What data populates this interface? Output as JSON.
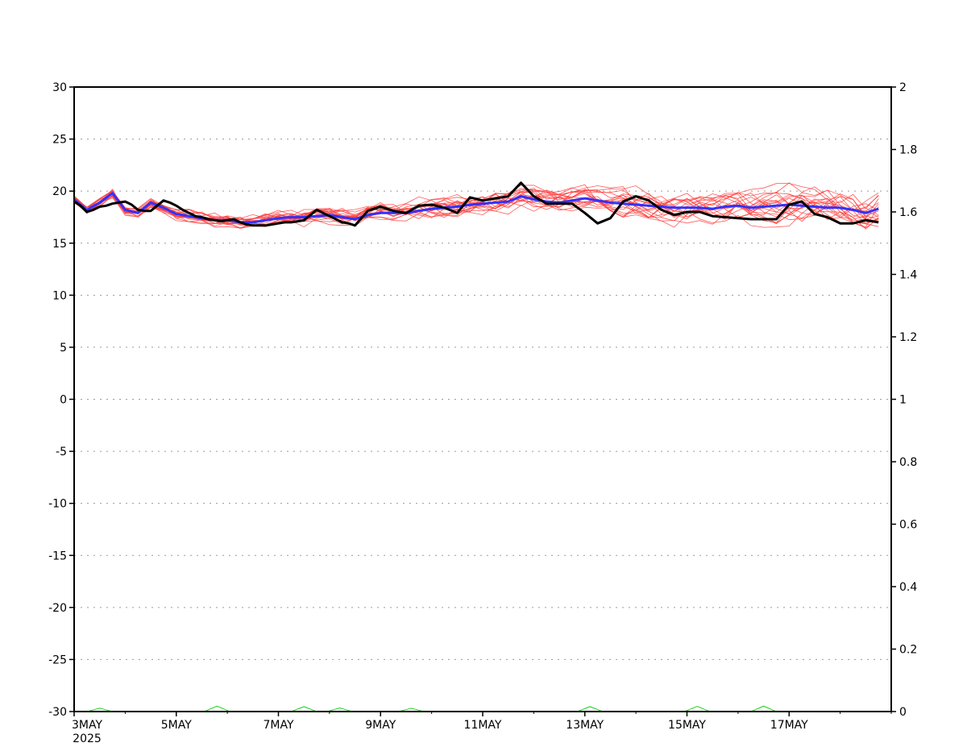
{
  "chart_data": {
    "type": "line",
    "title": "",
    "xlabel": "",
    "ylabel": "",
    "x_start": "2025-05-03T00:00",
    "x_end": "2025-05-19T00:00",
    "x_tick_labels": [
      "3MAY",
      "5MAY",
      "7MAY",
      "9MAY",
      "11MAY",
      "13MAY",
      "15MAY",
      "17MAY"
    ],
    "x_tick_dates": [
      "2025-05-03",
      "2025-05-05",
      "2025-05-07",
      "2025-05-09",
      "2025-05-11",
      "2025-05-13",
      "2025-05-15",
      "2025-05-17"
    ],
    "x_year_label": "2025",
    "y_left_range": [
      -30,
      30
    ],
    "y_left_ticks": [
      "30",
      "25",
      "20",
      "15",
      "10",
      "5",
      "0",
      "-5",
      "-10",
      "-15",
      "-20",
      "-25",
      "-30"
    ],
    "y_right_range": [
      0,
      2
    ],
    "y_right_ticks": [
      "2",
      "1.8",
      "1.6",
      "1.4",
      "1.2",
      "1",
      "0.8",
      "0.6",
      "0.4",
      "0.2",
      "0"
    ],
    "grid": "horizontal dotted",
    "colors": {
      "members": "#ff3c3c",
      "mean": "#3232ff",
      "control": "#000000",
      "precip": "#00cc00"
    },
    "series": [
      {
        "role": "control",
        "axis": "left",
        "x": [
          "2025-05-03T00:00",
          "2025-05-03T03:00",
          "2025-05-03T06:00",
          "2025-05-03T09:00",
          "2025-05-03T12:00",
          "2025-05-03T15:00",
          "2025-05-03T18:00",
          "2025-05-03T21:00",
          "2025-05-04T00:00",
          "2025-05-04T03:00",
          "2025-05-04T06:00",
          "2025-05-04T09:00",
          "2025-05-04T12:00",
          "2025-05-04T15:00",
          "2025-05-04T18:00",
          "2025-05-04T21:00",
          "2025-05-05T00:00",
          "2025-05-05T03:00",
          "2025-05-05T06:00",
          "2025-05-05T09:00",
          "2025-05-05T12:00",
          "2025-05-05T15:00",
          "2025-05-05T18:00",
          "2025-05-05T21:00",
          "2025-05-06T00:00",
          "2025-05-06T03:00",
          "2025-05-06T06:00",
          "2025-05-06T09:00",
          "2025-05-06T12:00",
          "2025-05-06T15:00",
          "2025-05-06T18:00",
          "2025-05-06T21:00",
          "2025-05-07T00:00",
          "2025-05-07T03:00",
          "2025-05-07T06:00",
          "2025-05-07T09:00",
          "2025-05-07T12:00",
          "2025-05-07T15:00",
          "2025-05-07T18:00",
          "2025-05-07T21:00",
          "2025-05-08T00:00",
          "2025-05-08T03:00",
          "2025-05-08T06:00",
          "2025-05-08T09:00",
          "2025-05-08T12:00",
          "2025-05-08T15:00",
          "2025-05-08T18:00",
          "2025-05-08T21:00",
          "2025-05-09T00:00",
          "2025-05-09T06:00",
          "2025-05-09T12:00",
          "2025-05-09T18:00",
          "2025-05-10T00:00",
          "2025-05-10T06:00",
          "2025-05-10T12:00",
          "2025-05-10T18:00",
          "2025-05-11T00:00",
          "2025-05-11T06:00",
          "2025-05-11T12:00",
          "2025-05-11T18:00",
          "2025-05-12T00:00",
          "2025-05-12T06:00",
          "2025-05-12T12:00",
          "2025-05-12T18:00",
          "2025-05-13T00:00",
          "2025-05-13T06:00",
          "2025-05-13T12:00",
          "2025-05-13T18:00",
          "2025-05-14T00:00",
          "2025-05-14T06:00",
          "2025-05-14T12:00",
          "2025-05-14T18:00",
          "2025-05-15T00:00",
          "2025-05-15T06:00",
          "2025-05-15T12:00",
          "2025-05-15T18:00",
          "2025-05-16T00:00",
          "2025-05-16T06:00",
          "2025-05-16T12:00",
          "2025-05-16T18:00",
          "2025-05-17T00:00",
          "2025-05-17T06:00",
          "2025-05-17T12:00",
          "2025-05-17T18:00",
          "2025-05-18T00:00",
          "2025-05-18T06:00",
          "2025-05-18T12:00",
          "2025-05-18T18:00"
        ],
        "values": [
          19.0,
          18.6,
          18.0,
          18.2,
          18.5,
          18.6,
          18.8,
          18.9,
          19.0,
          18.7,
          18.2,
          18.1,
          18.1,
          18.6,
          19.1,
          18.9,
          18.6,
          18.2,
          17.9,
          17.6,
          17.5,
          17.3,
          17.2,
          17.1,
          17.2,
          17.3,
          17.0,
          16.8,
          16.7,
          16.7,
          16.7,
          16.8,
          16.9,
          17.0,
          17.0,
          17.1,
          17.2,
          17.7,
          18.2,
          17.9,
          17.6,
          17.3,
          17.0,
          16.9,
          16.7,
          17.4,
          18.1,
          18.3,
          18.5,
          18.1,
          17.9,
          18.6,
          18.7,
          18.4,
          17.9,
          19.4,
          19.1,
          19.3,
          19.5,
          20.8,
          19.5,
          18.8,
          18.8,
          18.8,
          17.9,
          16.9,
          17.4,
          19.0,
          19.5,
          19.1,
          18.2,
          17.7,
          18.0,
          18.0,
          17.6,
          17.5,
          17.4,
          17.3,
          17.3,
          17.3,
          18.7,
          19.0,
          17.8,
          17.5,
          16.9,
          16.9,
          17.2,
          17.0
        ]
      },
      {
        "role": "ensemble mean",
        "axis": "left",
        "x": [
          "2025-05-03T00:00",
          "2025-05-03T06:00",
          "2025-05-03T12:00",
          "2025-05-03T18:00",
          "2025-05-04T00:00",
          "2025-05-04T06:00",
          "2025-05-04T12:00",
          "2025-05-04T18:00",
          "2025-05-05T00:00",
          "2025-05-05T06:00",
          "2025-05-05T12:00",
          "2025-05-05T18:00",
          "2025-05-06T00:00",
          "2025-05-06T06:00",
          "2025-05-06T12:00",
          "2025-05-06T18:00",
          "2025-05-07T00:00",
          "2025-05-07T06:00",
          "2025-05-07T12:00",
          "2025-05-07T18:00",
          "2025-05-08T00:00",
          "2025-05-08T06:00",
          "2025-05-08T12:00",
          "2025-05-08T18:00",
          "2025-05-09T00:00",
          "2025-05-09T06:00",
          "2025-05-09T12:00",
          "2025-05-09T18:00",
          "2025-05-10T00:00",
          "2025-05-10T06:00",
          "2025-05-10T12:00",
          "2025-05-10T18:00",
          "2025-05-11T00:00",
          "2025-05-11T06:00",
          "2025-05-11T12:00",
          "2025-05-11T18:00",
          "2025-05-12T00:00",
          "2025-05-12T06:00",
          "2025-05-12T12:00",
          "2025-05-12T18:00",
          "2025-05-13T00:00",
          "2025-05-13T06:00",
          "2025-05-13T12:00",
          "2025-05-13T18:00",
          "2025-05-14T00:00",
          "2025-05-14T06:00",
          "2025-05-14T12:00",
          "2025-05-14T18:00",
          "2025-05-15T00:00",
          "2025-05-15T06:00",
          "2025-05-15T12:00",
          "2025-05-15T18:00",
          "2025-05-16T00:00",
          "2025-05-16T06:00",
          "2025-05-16T12:00",
          "2025-05-16T18:00",
          "2025-05-17T00:00",
          "2025-05-17T06:00",
          "2025-05-17T12:00",
          "2025-05-17T18:00",
          "2025-05-18T00:00",
          "2025-05-18T06:00",
          "2025-05-18T12:00",
          "2025-05-18T18:00"
        ],
        "values": [
          19.2,
          18.2,
          18.9,
          19.8,
          18.2,
          17.9,
          18.9,
          18.4,
          17.8,
          17.6,
          17.4,
          17.2,
          17.2,
          17.0,
          17.0,
          17.2,
          17.4,
          17.5,
          17.5,
          17.6,
          17.7,
          17.5,
          17.3,
          17.7,
          17.9,
          17.9,
          17.9,
          18.1,
          18.3,
          18.4,
          18.5,
          18.7,
          18.8,
          18.9,
          19.0,
          19.5,
          19.2,
          19.0,
          18.9,
          19.1,
          19.3,
          19.1,
          18.9,
          18.8,
          18.7,
          18.6,
          18.5,
          18.4,
          18.4,
          18.4,
          18.3,
          18.5,
          18.6,
          18.4,
          18.5,
          18.6,
          18.7,
          18.6,
          18.5,
          18.4,
          18.4,
          18.2,
          17.9,
          18.3
        ]
      }
    ],
    "ensemble_members": {
      "axis": "left",
      "count": 20,
      "approx_range": [
        15.5,
        22.2
      ]
    },
    "precip_series": {
      "axis": "right",
      "approx_max": 0.02
    }
  }
}
